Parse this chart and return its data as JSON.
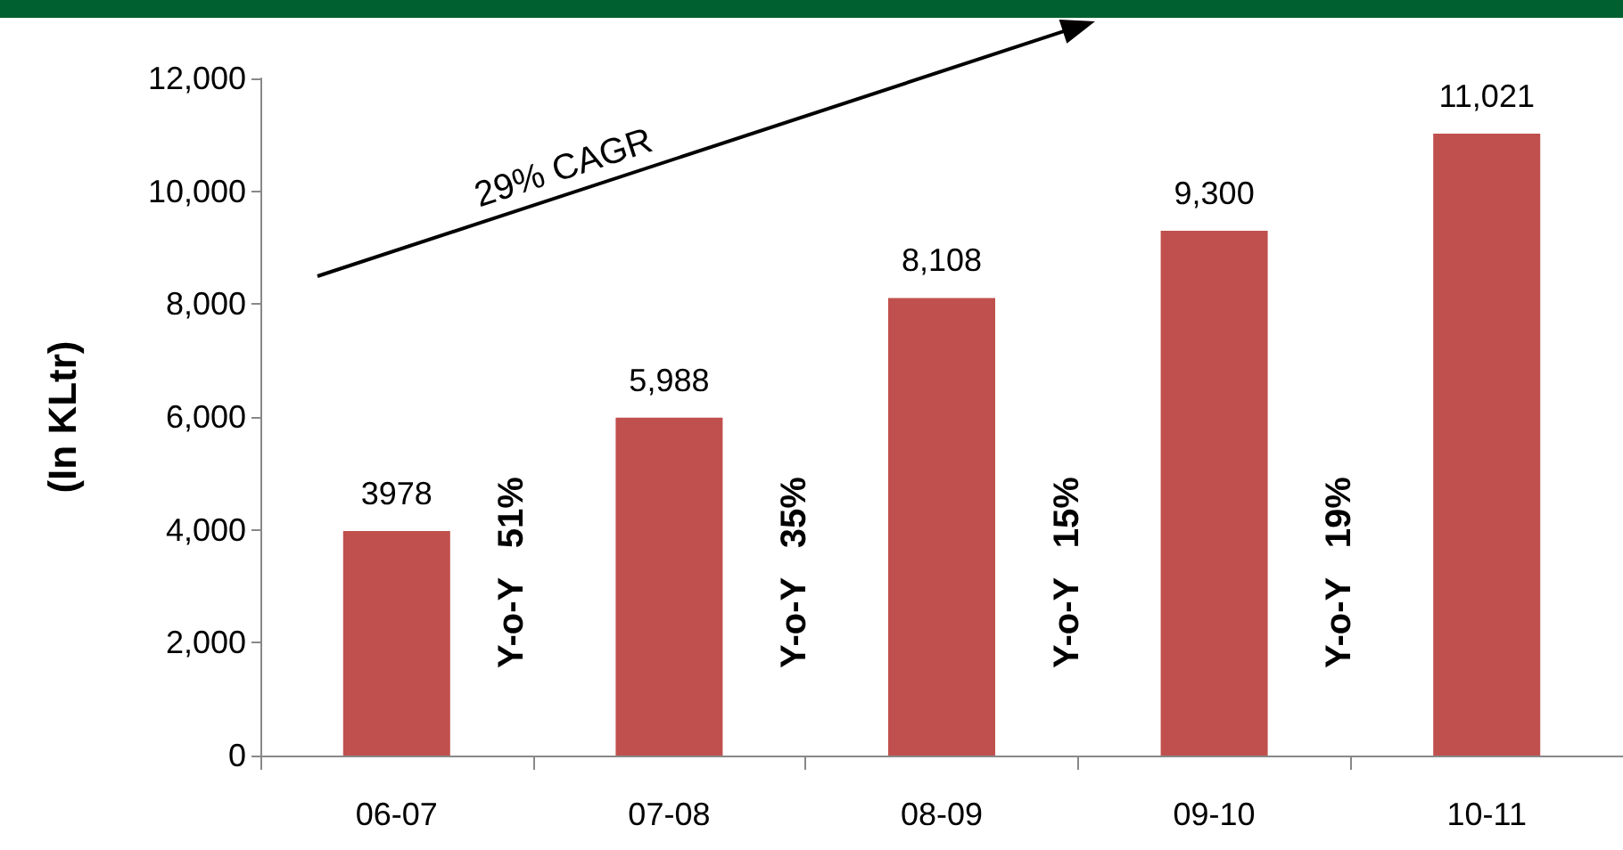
{
  "chart_data": {
    "type": "bar",
    "ylabel": "(In KLtr)",
    "categories": [
      "06-07",
      "07-08",
      "08-09",
      "09-10",
      "10-11"
    ],
    "values": [
      3978,
      5988,
      8108,
      9300,
      11021
    ],
    "value_labels": [
      "3978",
      "5,988",
      "8,108",
      "9,300",
      "11,021"
    ],
    "color": "#c0504d",
    "ylim": [
      0,
      12000
    ],
    "yticks": [
      {
        "value": 0,
        "label": "0"
      },
      {
        "value": 2000,
        "label": "2,000"
      },
      {
        "value": 4000,
        "label": "4,000"
      },
      {
        "value": 6000,
        "label": "6,000"
      },
      {
        "value": 8000,
        "label": "8,000"
      },
      {
        "value": 10000,
        "label": "10,000"
      },
      {
        "value": 12000,
        "label": "12,000"
      }
    ],
    "grid": false,
    "annotations": [
      "29% CAGR",
      "Y-o-Y   51%",
      "Y-o-Y   35%",
      "Y-o-Y   15%",
      "Y-o-Y   19%"
    ]
  }
}
